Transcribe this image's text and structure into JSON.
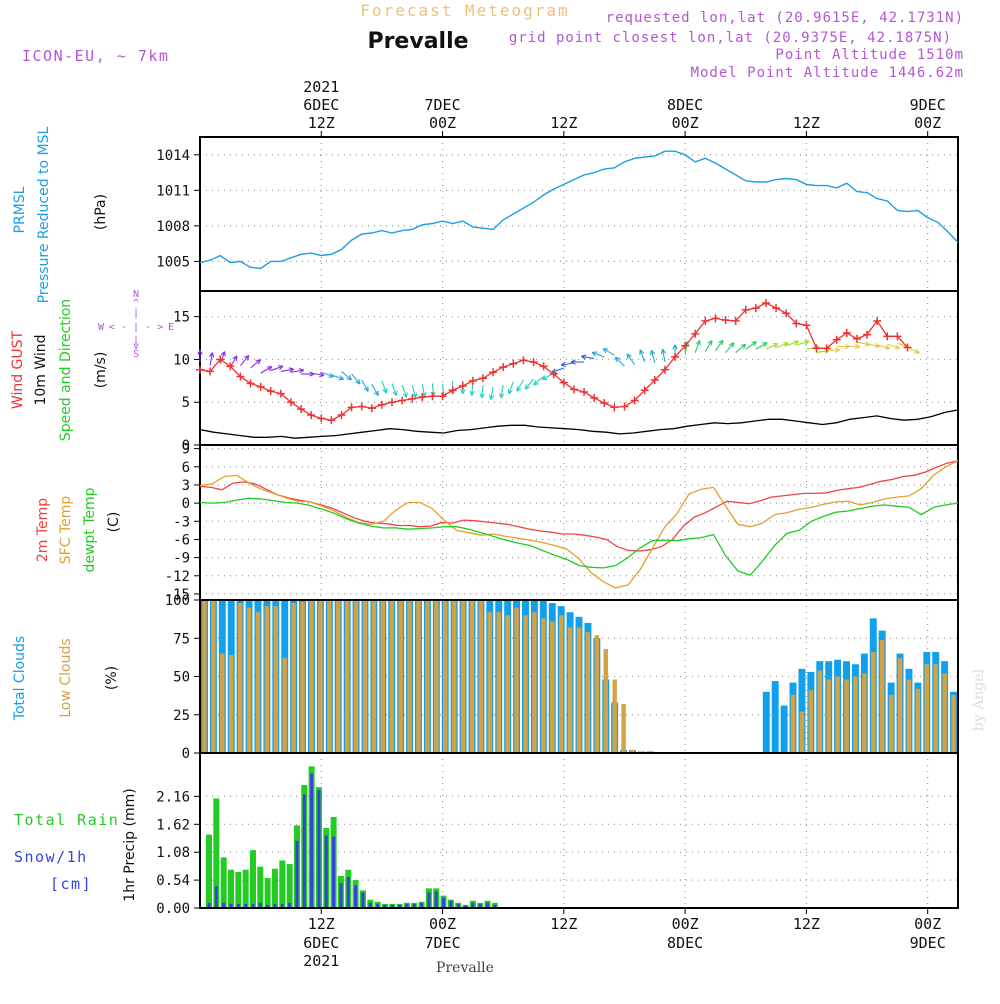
{
  "header": {
    "forecast_title": "Forecast Meteogram",
    "location": "Prevalle",
    "model": "ICON-EU, ~ 7km",
    "requested": "requested lon,lat (20.9615E, 42.1731N)",
    "gridpoint": "grid point closest lon,lat (20.9375E, 42.1875N)",
    "altitude": "Point Altitude 1510m",
    "model_altitude": "Model Point Altitude 1446.62m",
    "credit": "by Angel",
    "bottom_location": "Prevalle"
  },
  "time_axis": {
    "year": "2021",
    "top": [
      {
        "hour": 12,
        "date": "6DEC",
        "label": "12Z",
        "show_year": true
      },
      {
        "hour": 24,
        "date": "7DEC",
        "label": "00Z"
      },
      {
        "hour": 36,
        "date": "",
        "label": "12Z"
      },
      {
        "hour": 48,
        "date": "8DEC",
        "label": "00Z"
      },
      {
        "hour": 60,
        "date": "",
        "label": "12Z"
      },
      {
        "hour": 72,
        "date": "9DEC",
        "label": "00Z"
      }
    ],
    "bottom": [
      {
        "hour": 12,
        "label": "12Z",
        "date": "6DEC",
        "show_year": true
      },
      {
        "hour": 24,
        "label": "00Z",
        "date": "7DEC"
      },
      {
        "hour": 36,
        "label": "12Z",
        "date": ""
      },
      {
        "hour": 48,
        "label": "00Z",
        "date": "8DEC"
      },
      {
        "hour": 60,
        "label": "12Z",
        "date": ""
      },
      {
        "hour": 72,
        "label": "00Z",
        "date": "9DEC"
      }
    ]
  },
  "panels": {
    "pressure": {
      "label1": "PRMSL",
      "label2": "Pressure Reduced to MSL",
      "units": "(hPa)"
    },
    "wind": {
      "label_gust": "Wind GUST",
      "label_wind": "10m Wind",
      "label_dir": "Speed and Direction",
      "units": "(m/s)",
      "compass": {
        "n": "N",
        "s": "S",
        "w": "W",
        "e": "E",
        "h": "< - | - >",
        "v1": "^",
        "v2": "|",
        "v3": "v"
      }
    },
    "temp": {
      "label_2m": "2m Temp",
      "label_sfc": "SFC Temp",
      "label_dew": "dewpt Temp",
      "units": "(C)"
    },
    "clouds": {
      "label_total": "Total Clouds",
      "label_low": "Low Clouds",
      "units": "(%)"
    },
    "precip": {
      "label_rain": "Total  Rain",
      "label_snow": "Snow/1h",
      "label_cm": "[cm]",
      "ylabel": "1hr Precip (mm)"
    }
  },
  "colors": {
    "pressure": "#1ba0e0",
    "gust": "#ee3333",
    "wind_speed": "#000000",
    "temp_2m": "#ee4444",
    "temp_sfc": "#e3a030",
    "temp_dew": "#22cc22",
    "total_cloud": "#11a0ee",
    "low_cloud": "#d4a245",
    "rain": "#22cc22",
    "snow": "#3344dd",
    "header_title": "#f0c078",
    "header_info": "#b455d6"
  },
  "chart_data": [
    {
      "type": "line",
      "name": "pressure",
      "ylim": [
        1002.5,
        1015.5
      ],
      "yticks": [
        1005,
        1008,
        1011,
        1014
      ],
      "x_start": 0,
      "x_step": 1,
      "values": [
        1004.9,
        1005.1,
        1005.5,
        1004.9,
        1005.0,
        1004.5,
        1004.4,
        1005.0,
        1005.0,
        1005.3,
        1005.6,
        1005.7,
        1005.5,
        1005.6,
        1006.0,
        1006.8,
        1007.3,
        1007.4,
        1007.6,
        1007.4,
        1007.6,
        1007.7,
        1008.1,
        1008.2,
        1008.4,
        1008.2,
        1008.4,
        1007.9,
        1007.8,
        1007.7,
        1008.5,
        1009.0,
        1009.5,
        1010.0,
        1010.6,
        1011.1,
        1011.5,
        1011.9,
        1012.3,
        1012.5,
        1012.8,
        1012.9,
        1013.4,
        1013.7,
        1013.8,
        1013.9,
        1014.3,
        1014.3,
        1014.0,
        1013.4,
        1013.7,
        1013.3,
        1012.8,
        1012.3,
        1011.8,
        1011.7,
        1011.7,
        1011.9,
        1012.0,
        1011.9,
        1011.5,
        1011.4,
        1011.4,
        1011.2,
        1011.6,
        1010.9,
        1010.8,
        1010.3,
        1010.1,
        1009.3,
        1009.2,
        1009.3,
        1008.7,
        1008.3,
        1007.5,
        1006.6
      ]
    },
    {
      "type": "line",
      "name": "wind",
      "ylim": [
        0,
        18
      ],
      "yticks": [
        0,
        5,
        10,
        15
      ],
      "x_start": 0,
      "x_step": 1,
      "gust": [
        8.8,
        8.6,
        10.0,
        9.2,
        8.0,
        7.2,
        6.8,
        6.3,
        6.0,
        5.0,
        4.2,
        3.5,
        3.1,
        2.9,
        3.5,
        4.4,
        4.5,
        4.3,
        4.7,
        5.0,
        5.2,
        5.4,
        5.6,
        5.7,
        5.7,
        6.4,
        6.9,
        7.5,
        7.8,
        8.5,
        9.1,
        9.5,
        9.9,
        9.7,
        9.2,
        8.3,
        7.3,
        6.5,
        6.2,
        5.5,
        4.9,
        4.4,
        4.5,
        5.2,
        6.4,
        7.6,
        8.8,
        10.3,
        11.6,
        13.0,
        14.5,
        14.8,
        14.6,
        14.5,
        15.8,
        16.0,
        16.6,
        16.0,
        15.4,
        14.2,
        14.0,
        11.3,
        11.3,
        12.3,
        13.1,
        12.4,
        12.9,
        14.5,
        12.7,
        12.7,
        11.4
      ],
      "wind_speed": [
        1.8,
        1.5,
        1.3,
        1.1,
        0.9,
        0.9,
        1.0,
        0.8,
        0.9,
        1.0,
        1.1,
        1.3,
        1.5,
        1.7,
        1.9,
        1.8,
        1.6,
        1.5,
        1.4,
        1.7,
        1.8,
        2.0,
        2.2,
        2.3,
        2.3,
        2.1,
        2.0,
        1.9,
        1.8,
        1.6,
        1.5,
        1.3,
        1.4,
        1.6,
        1.8,
        1.9,
        2.2,
        2.4,
        2.6,
        2.5,
        2.6,
        2.8,
        3.0,
        3.0,
        2.8,
        2.6,
        2.4,
        2.6,
        3.0,
        3.2,
        3.4,
        3.1,
        2.9,
        3.0,
        3.3,
        3.8,
        4.1
      ],
      "arrows_y": [
        9.6,
        9.3,
        9.5,
        9.1,
        9.3,
        9.0,
        8.4,
        8.7,
        8.6,
        8.5,
        8.3,
        8.4,
        8.5,
        8.2,
        8.6,
        8.3,
        7.6,
        7.1,
        7.5,
        7.2,
        7.0,
        7.0,
        7.1,
        7.2,
        7.1,
        7.5,
        7.5,
        7.3,
        7.0,
        6.8,
        7.0,
        7.4,
        7.6,
        7.7,
        8.0,
        8.4,
        9.0,
        9.6,
        9.7,
        10.1,
        10.3,
        10.5,
        9.2,
        9.4,
        9.7,
        9.6,
        9.7,
        10.2,
        10.6,
        10.8,
        10.9,
        11.0,
        10.8,
        10.8,
        11.2,
        11.2,
        11.2,
        11.4,
        11.6,
        11.7,
        11.2,
        10.8,
        11.0,
        11.5,
        11.6,
        12.0,
        11.8,
        11.7,
        11.8,
        11.9,
        11.4
      ],
      "arrows_dir": [
        0,
        10,
        20,
        30,
        40,
        50,
        60,
        70,
        80,
        80,
        90,
        100,
        110,
        110,
        130,
        140,
        150,
        150,
        160,
        160,
        160,
        165,
        170,
        175,
        175,
        180,
        180,
        185,
        185,
        190,
        190,
        200,
        210,
        220,
        230,
        240,
        250,
        260,
        270,
        280,
        290,
        300,
        315,
        325,
        340,
        345,
        350,
        0,
        10,
        20,
        30,
        35,
        40,
        50,
        55,
        60,
        65,
        70,
        70,
        75,
        80,
        80,
        85,
        90,
        95,
        100,
        100,
        105,
        110,
        110,
        115
      ]
    },
    {
      "type": "line",
      "name": "temperature",
      "ylim": [
        -16,
        9.6
      ],
      "yticks": [
        -15,
        -12,
        -9,
        -6,
        -3,
        0,
        3,
        6,
        9
      ],
      "x_start": 0,
      "x_step": 1,
      "temp_2m": [
        2.8,
        2.6,
        2.2,
        3.3,
        3.5,
        3.2,
        2.3,
        1.4,
        0.9,
        0.5,
        0.2,
        -0.3,
        -0.8,
        -1.6,
        -2.4,
        -3.0,
        -3.3,
        -3.4,
        -3.7,
        -3.7,
        -3.9,
        -3.8,
        -3.2,
        -3.3,
        -2.8,
        -2.9,
        -3.1,
        -3.3,
        -3.5,
        -3.9,
        -4.3,
        -4.6,
        -4.8,
        -5.1,
        -5.1,
        -5.3,
        -5.6,
        -6.0,
        -7.2,
        -7.8,
        -7.9,
        -7.7,
        -7.2,
        -6.0,
        -3.8,
        -2.3,
        -1.6,
        -0.6,
        0.3,
        0.1,
        -0.1,
        0.4,
        1.0,
        1.2,
        1.4,
        1.6,
        1.6,
        1.7,
        2.1,
        2.4,
        2.6,
        3.1,
        3.6,
        3.9,
        4.4,
        4.6,
        5.1,
        5.9,
        6.6,
        7.0
      ],
      "temp_sfc": [
        2.9,
        3.2,
        4.4,
        4.6,
        3.3,
        2.3,
        1.6,
        0.9,
        0.3,
        0.2,
        -0.5,
        -1.3,
        -2.4,
        -3.2,
        -3.5,
        -3.0,
        -1.2,
        0.1,
        0.1,
        -0.9,
        -2.9,
        -4.5,
        -4.9,
        -5.3,
        -5.1,
        -5.5,
        -5.8,
        -6.1,
        -6.5,
        -7.0,
        -7.6,
        -9.2,
        -11.5,
        -13.0,
        -14.0,
        -13.5,
        -11.0,
        -7.5,
        -4.0,
        -1.8,
        1.5,
        2.3,
        2.6,
        -0.5,
        -3.5,
        -3.9,
        -3.3,
        -1.9,
        -1.6,
        -1.0,
        -0.7,
        -0.2,
        0.2,
        0.3,
        -0.3,
        0.1,
        0.7,
        1.0,
        1.2,
        2.4,
        4.6,
        6.0,
        7.0
      ],
      "temp_dew": [
        0.1,
        0.0,
        0.1,
        0.5,
        0.8,
        0.7,
        0.4,
        0.1,
        0.0,
        -0.4,
        -1.0,
        -1.7,
        -2.6,
        -3.3,
        -3.8,
        -4.1,
        -4.1,
        -4.3,
        -4.2,
        -4.1,
        -3.9,
        -3.9,
        -4.3,
        -4.9,
        -5.5,
        -6.1,
        -6.6,
        -7.0,
        -7.8,
        -8.6,
        -9.3,
        -10.3,
        -10.6,
        -10.7,
        -10.3,
        -9.0,
        -7.4,
        -6.2,
        -6.1,
        -6.2,
        -5.9,
        -5.7,
        -5.2,
        -8.7,
        -11.2,
        -11.9,
        -9.6,
        -7.0,
        -5.0,
        -4.5,
        -3.0,
        -2.2,
        -1.5,
        -1.3,
        -0.9,
        -0.5,
        -0.3,
        -0.5,
        -0.7,
        -1.9,
        -0.7,
        -0.3,
        0.0
      ]
    },
    {
      "type": "bar",
      "name": "clouds",
      "ylim": [
        0,
        100
      ],
      "yticks": [
        0,
        25,
        50,
        75,
        100
      ],
      "x_start": 0,
      "x_step": 1,
      "total": [
        100,
        100,
        100,
        100,
        100,
        100,
        100,
        100,
        100,
        100,
        100,
        100,
        100,
        100,
        100,
        100,
        100,
        100,
        100,
        100,
        100,
        100,
        100,
        100,
        100,
        100,
        100,
        100,
        100,
        100,
        100,
        100,
        100,
        100,
        100,
        100,
        100,
        100,
        100,
        98,
        96,
        92,
        89,
        85,
        75,
        48,
        33,
        2,
        2,
        1,
        1,
        0,
        0,
        0,
        0,
        0,
        0,
        0,
        0,
        0,
        0,
        0,
        0,
        40,
        47,
        31,
        46,
        55,
        53,
        60,
        60,
        61,
        60,
        58,
        65,
        88,
        80,
        46,
        65,
        55,
        46,
        66,
        66,
        60,
        40
      ],
      "low": [
        100,
        100,
        65,
        64,
        98,
        95,
        92,
        96,
        96,
        62,
        98,
        99,
        100,
        100,
        100,
        100,
        100,
        100,
        100,
        100,
        100,
        100,
        100,
        100,
        100,
        100,
        100,
        100,
        100,
        100,
        100,
        100,
        92,
        92,
        90,
        95,
        90,
        92,
        88,
        86,
        90,
        82,
        82,
        79,
        77,
        68,
        48,
        32,
        2,
        1,
        0,
        0,
        0,
        0,
        0,
        0,
        0,
        0,
        0,
        0,
        0,
        0,
        0,
        0,
        0,
        0,
        38,
        27,
        41,
        54,
        48,
        50,
        48,
        50,
        52,
        66,
        74,
        38,
        62,
        48,
        42,
        58,
        58,
        52,
        38
      ]
    },
    {
      "type": "bar",
      "name": "precipitation",
      "ylim": [
        0,
        3.0
      ],
      "yticks": [
        0,
        0.54,
        1.08,
        1.62,
        2.16
      ],
      "x_start": 0,
      "x_step": 1,
      "rain": [
        1.42,
        2.12,
        0.98,
        0.74,
        0.7,
        0.74,
        1.12,
        0.8,
        0.58,
        0.76,
        0.92,
        0.85,
        1.6,
        2.38,
        2.74,
        2.34,
        1.55,
        1.76,
        0.62,
        0.74,
        0.54,
        0.34,
        0.16,
        0.12,
        0.08,
        0.08,
        0.08,
        0.1,
        0.1,
        0.12,
        0.38,
        0.38,
        0.24,
        0.16,
        0.1,
        0.06,
        0.14,
        0.1,
        0.14,
        0.1
      ],
      "snow": [
        0.1,
        0.42,
        0.1,
        0.08,
        0.08,
        0.08,
        0.08,
        0.1,
        0.06,
        0.08,
        0.08,
        0.1,
        1.3,
        2.2,
        2.6,
        2.28,
        1.4,
        1.38,
        0.48,
        0.6,
        0.44,
        0.3,
        0.1,
        0.08,
        0.06,
        0.06,
        0.06,
        0.08,
        0.08,
        0.1,
        0.3,
        0.32,
        0.2,
        0.14,
        0.08,
        0.05,
        0.1,
        0.08,
        0.1,
        0.06
      ]
    }
  ]
}
